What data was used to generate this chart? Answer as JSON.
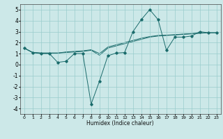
{
  "title": "",
  "xlabel": "Humidex (Indice chaleur)",
  "ylabel": "",
  "xlim": [
    -0.5,
    23.5
  ],
  "ylim": [
    -4.5,
    5.5
  ],
  "yticks": [
    -4,
    -3,
    -2,
    -1,
    0,
    1,
    2,
    3,
    4,
    5
  ],
  "xticks": [
    0,
    1,
    2,
    3,
    4,
    5,
    6,
    7,
    8,
    9,
    10,
    11,
    12,
    13,
    14,
    15,
    16,
    17,
    18,
    19,
    20,
    21,
    22,
    23
  ],
  "background_color": "#cce8e8",
  "grid_color": "#99cccc",
  "line_color": "#1a6b6b",
  "line1_x": [
    0,
    1,
    2,
    3,
    4,
    5,
    6,
    7,
    8,
    9,
    10,
    11,
    12,
    13,
    14,
    15,
    16,
    17,
    18,
    19,
    20,
    21,
    22,
    23
  ],
  "line1_y": [
    1.5,
    1.1,
    1.0,
    1.0,
    0.2,
    0.3,
    1.0,
    1.0,
    -3.6,
    -1.5,
    0.8,
    1.05,
    1.1,
    3.0,
    4.1,
    5.0,
    4.1,
    1.3,
    2.5,
    2.5,
    2.6,
    3.0,
    2.9,
    2.9
  ],
  "line2_x": [
    0,
    1,
    2,
    3,
    4,
    5,
    6,
    7,
    8,
    9,
    10,
    11,
    12,
    13,
    14,
    15,
    16,
    17,
    18,
    19,
    20,
    21,
    22,
    23
  ],
  "line2_y": [
    1.5,
    1.1,
    1.05,
    1.05,
    1.05,
    1.1,
    1.15,
    1.2,
    1.3,
    0.85,
    1.5,
    1.7,
    1.9,
    2.1,
    2.3,
    2.5,
    2.6,
    2.65,
    2.7,
    2.75,
    2.8,
    2.85,
    2.9,
    2.9
  ],
  "line3_x": [
    0,
    1,
    2,
    3,
    4,
    5,
    6,
    7,
    8,
    9,
    10,
    11,
    12,
    13,
    14,
    15,
    16,
    17,
    18,
    19,
    20,
    21,
    22,
    23
  ],
  "line3_y": [
    1.5,
    1.1,
    1.05,
    1.05,
    1.05,
    1.15,
    1.2,
    1.25,
    1.35,
    1.0,
    1.6,
    1.8,
    2.0,
    2.2,
    2.4,
    2.55,
    2.65,
    2.68,
    2.72,
    2.78,
    2.82,
    2.88,
    2.92,
    2.92
  ],
  "xlabel_fontsize": 5.5,
  "tick_fontsize": 4.5,
  "ytick_fontsize": 5.5,
  "linewidth": 0.7,
  "markersize": 1.8
}
